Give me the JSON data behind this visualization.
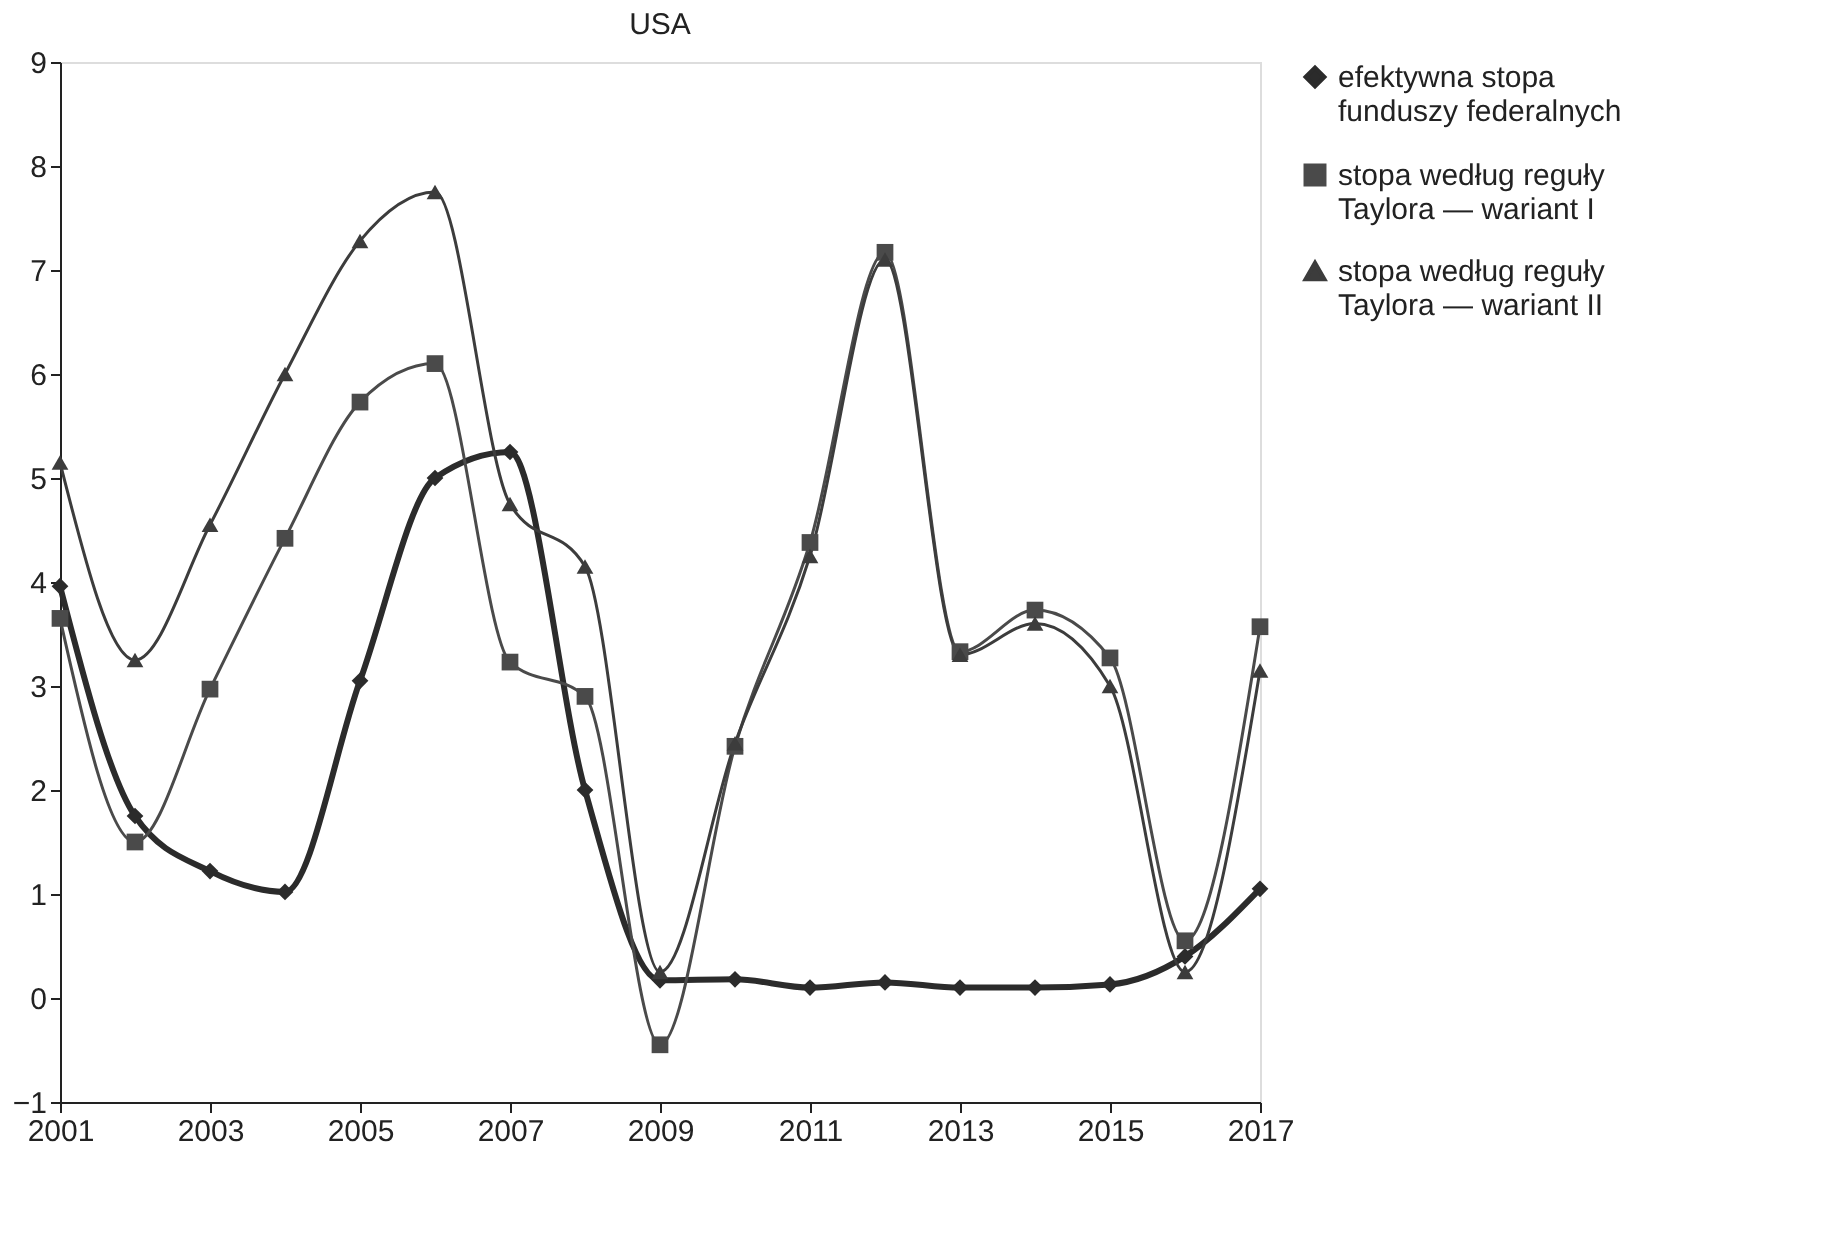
{
  "chart_data": {
    "type": "line",
    "title": "USA",
    "x": [
      2001,
      2002,
      2003,
      2004,
      2005,
      2006,
      2007,
      2008,
      2009,
      2010,
      2011,
      2012,
      2013,
      2014,
      2015,
      2016,
      2017
    ],
    "series": [
      {
        "name": "efektywna stopa funduszy federalnych",
        "color": "#2b2b2b",
        "marker": "diamond",
        "values": [
          3.96,
          1.75,
          1.22,
          1.02,
          3.05,
          5.0,
          5.25,
          2.0,
          0.17,
          0.18,
          0.1,
          0.15,
          0.1,
          0.1,
          0.13,
          0.4,
          1.05
        ]
      },
      {
        "name": "stopa według reguły Taylora — wariant I",
        "color": "#4a4a4a",
        "marker": "square",
        "values": [
          3.65,
          1.5,
          2.97,
          4.42,
          5.73,
          6.1,
          3.23,
          2.9,
          -0.45,
          2.42,
          4.38,
          7.17,
          3.33,
          3.73,
          3.27,
          0.55,
          3.57
        ]
      },
      {
        "name": "stopa według reguły Taylora — wariant II",
        "color": "#3c3c3c",
        "marker": "triangle",
        "values": [
          5.15,
          3.25,
          4.55,
          6.0,
          7.28,
          7.75,
          4.75,
          4.15,
          0.25,
          2.45,
          4.25,
          7.1,
          3.3,
          3.6,
          3.0,
          0.25,
          3.15
        ]
      }
    ],
    "xlim": [
      2001,
      2017
    ],
    "xticks": [
      2001,
      2003,
      2005,
      2007,
      2009,
      2011,
      2013,
      2015,
      2017
    ],
    "ylim": [
      -1,
      9
    ],
    "yticks": [
      -1,
      0,
      1,
      2,
      3,
      4,
      5,
      6,
      7,
      8,
      9
    ],
    "grid": false,
    "legend": "top right"
  }
}
